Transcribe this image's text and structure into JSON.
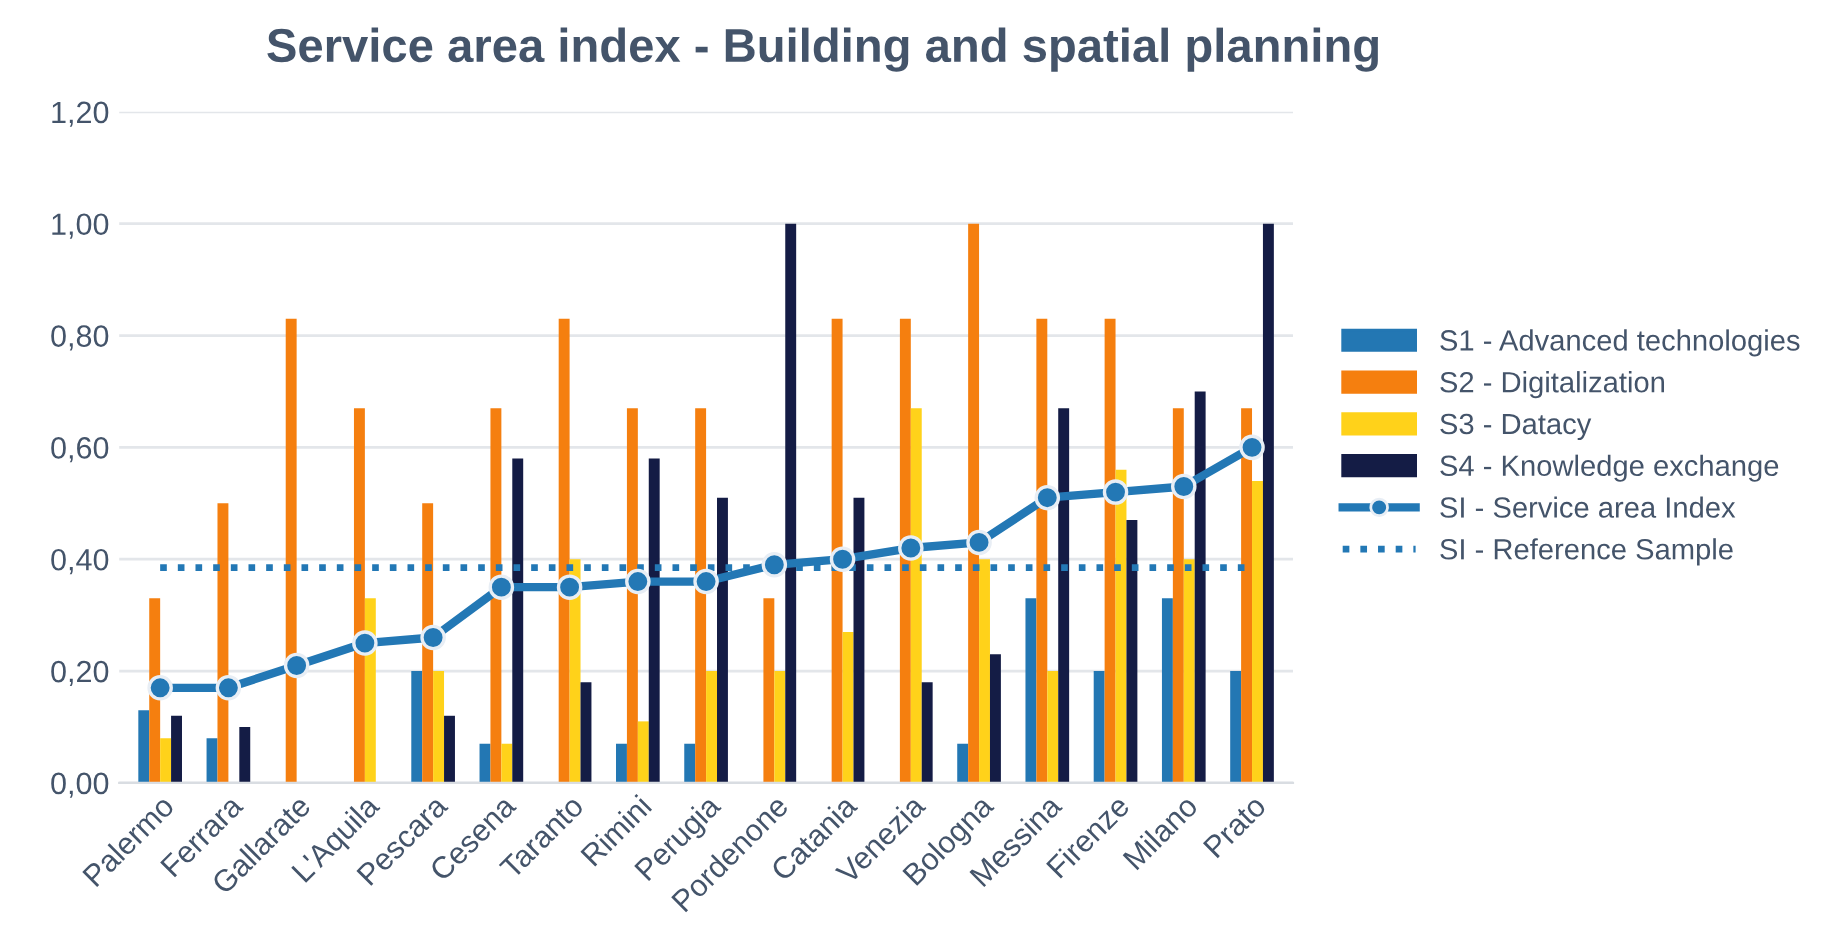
{
  "chart_data": {
    "type": "bar",
    "title": "Service area index - Building and spatial planning",
    "categories": [
      "Palermo",
      "Ferrara",
      "Gallarate",
      "L'Aquila",
      "Pescara",
      "Cesena",
      "Taranto",
      "Rimini",
      "Perugia",
      "Pordenone",
      "Catania",
      "Venezia",
      "Bologna",
      "Messina",
      "Firenze",
      "Milano",
      "Prato"
    ],
    "series": [
      {
        "name": "S1 - Advanced technologies",
        "color": "#2377b3",
        "values": [
          0.13,
          0.08,
          0,
          0,
          0.2,
          0.07,
          0,
          0.07,
          0.07,
          0,
          0,
          0,
          0.07,
          0.33,
          0.2,
          0.33,
          0.2
        ]
      },
      {
        "name": "S2 - Digitalization",
        "color": "#f57f0f",
        "values": [
          0.33,
          0.5,
          0.83,
          0.67,
          0.5,
          0.67,
          0.83,
          0.67,
          0.67,
          0.33,
          0.83,
          0.83,
          1.0,
          0.83,
          0.83,
          0.67,
          0.67
        ]
      },
      {
        "name": "S3 - Datacy",
        "color": "#ffd21a",
        "values": [
          0.08,
          0,
          0,
          0.33,
          0.2,
          0.07,
          0.4,
          0.11,
          0.2,
          0.2,
          0.27,
          0.67,
          0.4,
          0.2,
          0.56,
          0.4,
          0.54
        ]
      },
      {
        "name": "S4 - Knowledge exchange",
        "color": "#141c45",
        "values": [
          0.12,
          0.1,
          0,
          0,
          0.12,
          0.58,
          0.18,
          0.58,
          0.51,
          1.0,
          0.51,
          0.18,
          0.23,
          0.67,
          0.47,
          0.7,
          1.0
        ]
      },
      {
        "name": "SI - Service area Index",
        "type": "line",
        "marker": "circle",
        "color": "#2378b5",
        "values": [
          0.17,
          0.17,
          0.21,
          0.25,
          0.26,
          0.35,
          0.35,
          0.36,
          0.36,
          0.39,
          0.4,
          0.42,
          0.43,
          0.51,
          0.52,
          0.53,
          0.6
        ]
      },
      {
        "name": "SI - Reference Sample",
        "type": "line",
        "line_style": "dotted",
        "color": "#2378b5",
        "values": [
          0.385,
          0.385,
          0.385,
          0.385,
          0.385,
          0.385,
          0.385,
          0.385,
          0.385,
          0.385,
          0.385,
          0.385,
          0.385,
          0.385,
          0.385,
          0.385,
          0.385
        ]
      }
    ],
    "ylim": [
      0,
      1.2
    ],
    "yticks": [
      {
        "value": 0,
        "label": "0,00"
      },
      {
        "value": 0.2,
        "label": "0,20"
      },
      {
        "value": 0.4,
        "label": "0,40"
      },
      {
        "value": 0.6,
        "label": "0,60"
      },
      {
        "value": 0.8,
        "label": "0,80"
      },
      {
        "value": 1.0,
        "label": "1,00"
      },
      {
        "value": 1.2,
        "label": "1,20"
      }
    ],
    "grid": "y",
    "legend": "right"
  }
}
